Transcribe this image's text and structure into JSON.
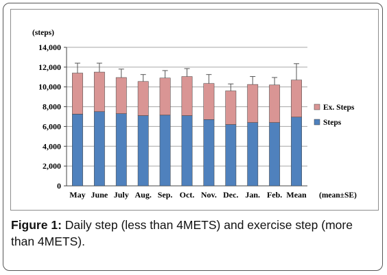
{
  "caption": {
    "label": "Figure 1:",
    "text": " Daily step (less than 4METS) and exercise step (more than 4METS)."
  },
  "chart_data": {
    "type": "bar",
    "stacked": true,
    "ylabel": "(steps)",
    "ylim": [
      0,
      14000
    ],
    "yticks": [
      0,
      2000,
      4000,
      6000,
      8000,
      10000,
      12000,
      14000
    ],
    "ytick_labels": [
      "0",
      "2,000",
      "4,000",
      "6,000",
      "8,000",
      "10,000",
      "12,000",
      "14,000"
    ],
    "categories": [
      "May",
      "June",
      "July",
      "Aug.",
      "Sep.",
      "Oct.",
      "Nov.",
      "Dec.",
      "Jan.",
      "Feb.",
      "Mean"
    ],
    "series": [
      {
        "name": "Steps",
        "color": "#4f81bd",
        "values": [
          7250,
          7500,
          7300,
          7100,
          7150,
          7100,
          6700,
          6200,
          6400,
          6400,
          6950
        ]
      },
      {
        "name": "Ex. Steps",
        "color": "#d99594",
        "values": [
          4150,
          4000,
          3650,
          3450,
          3750,
          3950,
          3650,
          3400,
          3850,
          3800,
          3750
        ]
      }
    ],
    "error_bars_upper": [
      12400,
      12400,
      11800,
      11250,
      11650,
      11850,
      11250,
      10300,
      11050,
      10950,
      12350
    ],
    "error_note": "(mean±SE)",
    "legend_position": "right",
    "grid": true,
    "grid_color": "#a6a6a6"
  }
}
